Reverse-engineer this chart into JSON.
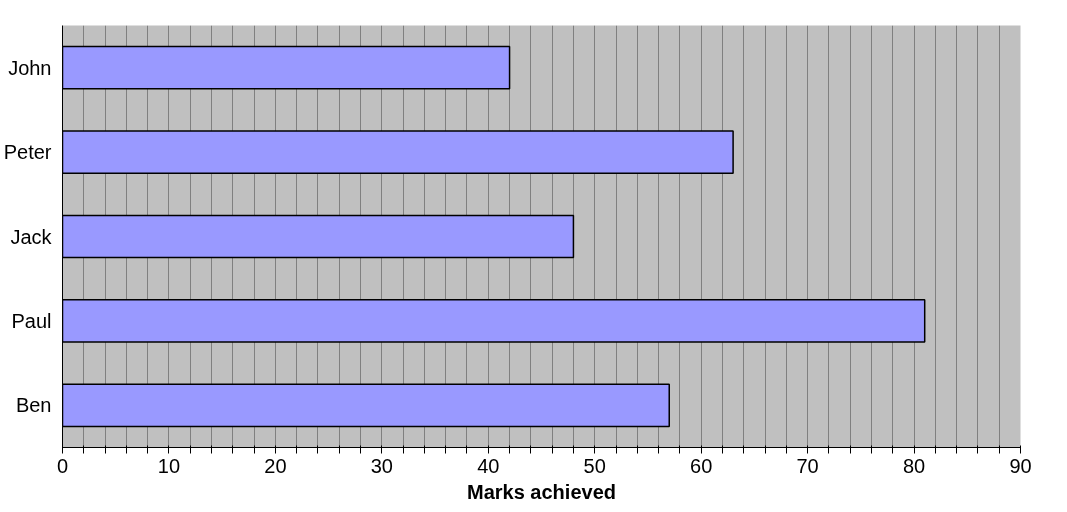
{
  "chart_data": {
    "type": "bar",
    "orientation": "horizontal",
    "xlabel": "Marks achieved",
    "categories": [
      "John",
      "Peter",
      "Jack",
      "Paul",
      "Ben"
    ],
    "values": [
      42,
      63,
      48,
      81,
      57
    ],
    "color": "#9999ff",
    "xlim": [
      0,
      90
    ],
    "xticks": [
      0,
      {
        "value": 2,
        "label": null
      },
      {
        "value": 4,
        "label": null
      },
      {
        "value": 6,
        "label": null
      },
      {
        "value": 8,
        "label": null
      },
      10,
      {
        "value": 12,
        "label": null
      },
      {
        "value": 14,
        "label": null
      },
      {
        "value": 16,
        "label": null
      },
      {
        "value": 18,
        "label": null
      },
      20,
      {
        "value": 22,
        "label": null
      },
      {
        "value": 24,
        "label": null
      },
      {
        "value": 26,
        "label": null
      },
      {
        "value": 28,
        "label": null
      },
      30,
      {
        "value": 32,
        "label": null
      },
      {
        "value": 34,
        "label": null
      },
      {
        "value": 36,
        "label": null
      },
      {
        "value": 38,
        "label": null
      },
      40,
      {
        "value": 42,
        "label": null
      },
      {
        "value": 44,
        "label": null
      },
      {
        "value": 46,
        "label": null
      },
      {
        "value": 48,
        "label": null
      },
      50,
      {
        "value": 52,
        "label": null
      },
      {
        "value": 54,
        "label": null
      },
      {
        "value": 56,
        "label": null
      },
      {
        "value": 58,
        "label": null
      },
      60,
      {
        "value": 62,
        "label": null
      },
      {
        "value": 64,
        "label": null
      },
      {
        "value": 66,
        "label": null
      },
      {
        "value": 68,
        "label": null
      },
      70,
      {
        "value": 72,
        "label": null
      },
      {
        "value": 74,
        "label": null
      },
      {
        "value": 76,
        "label": null
      },
      {
        "value": 78,
        "label": null
      },
      80,
      {
        "value": 82,
        "label": null
      },
      {
        "value": 84,
        "label": null
      },
      {
        "value": 86,
        "label": null
      },
      {
        "value": 88,
        "label": null
      },
      90
    ],
    "grid": "x"
  }
}
